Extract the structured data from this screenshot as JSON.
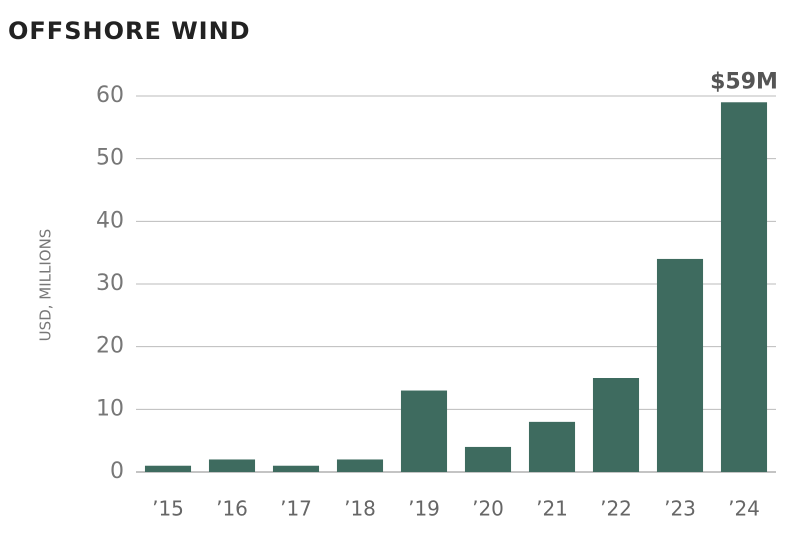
{
  "chart_data": {
    "type": "bar",
    "title": "OFFSHORE WIND",
    "y_label": "USD, MILLIONS",
    "categories": [
      "’15",
      "’16",
      "’17",
      "’18",
      "’19",
      "’20",
      "’21",
      "’22",
      "’23",
      "’24"
    ],
    "values": [
      1,
      2,
      1,
      2,
      13,
      4,
      8,
      15,
      34,
      59
    ],
    "value_labels": [
      null,
      null,
      null,
      null,
      null,
      null,
      null,
      null,
      null,
      "$59M"
    ],
    "color": "#3e6b5f",
    "ylim": [
      0,
      60
    ],
    "yticks": [
      0,
      10,
      20,
      30,
      40,
      50,
      60
    ],
    "grid": true
  }
}
